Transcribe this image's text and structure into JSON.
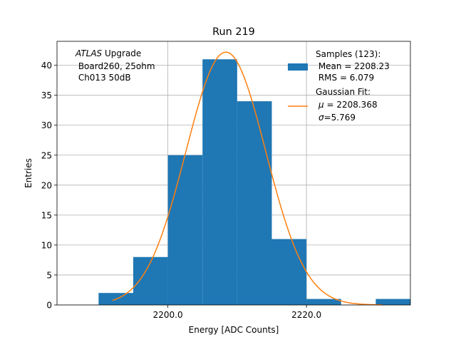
{
  "chart_data": {
    "type": "bar",
    "title": "Run 219",
    "xlabel": "Energy [ADC Counts]",
    "ylabel": "Entries",
    "xlim": [
      2184.0,
      2235.0
    ],
    "ylim": [
      0,
      44
    ],
    "xticks": [
      2200.0,
      2220.0
    ],
    "xtick_labels": [
      "2200.0",
      "2220.0"
    ],
    "yticks": [
      0,
      5,
      10,
      15,
      20,
      25,
      30,
      35,
      40
    ],
    "ytick_labels": [
      "0",
      "5",
      "10",
      "15",
      "20",
      "25",
      "30",
      "35",
      "40"
    ],
    "grid": true,
    "histogram": {
      "bin_edges": [
        2190,
        2195,
        2200,
        2205,
        2210,
        2215,
        2220,
        2225,
        2230,
        2235
      ],
      "counts": [
        2,
        8,
        25,
        41,
        34,
        11,
        1,
        0,
        1
      ],
      "color": "#1f77b4"
    },
    "gaussian_fit": {
      "mu": 2208.368,
      "sigma": 5.769,
      "amplitude": 42.2,
      "x_range": [
        2192,
        2231
      ],
      "color": "#ff7f0e"
    },
    "annotation": {
      "italic_word": "ATLAS",
      "line1_rest": " Upgrade",
      "line2": " Board260, 25ohm",
      "line3": " Ch013 50dB"
    },
    "legend": {
      "position": "top-right",
      "samples": {
        "line1": "Samples (123):",
        "line2": " Mean = 2208.23",
        "line3": " RMS = 6.079"
      },
      "fit": {
        "line1": "Gaussian Fit:",
        "mu_symbol": "μ",
        "mu_text": " = 2208.368",
        "sigma_symbol": "σ",
        "sigma_text": "=5.769"
      }
    }
  }
}
